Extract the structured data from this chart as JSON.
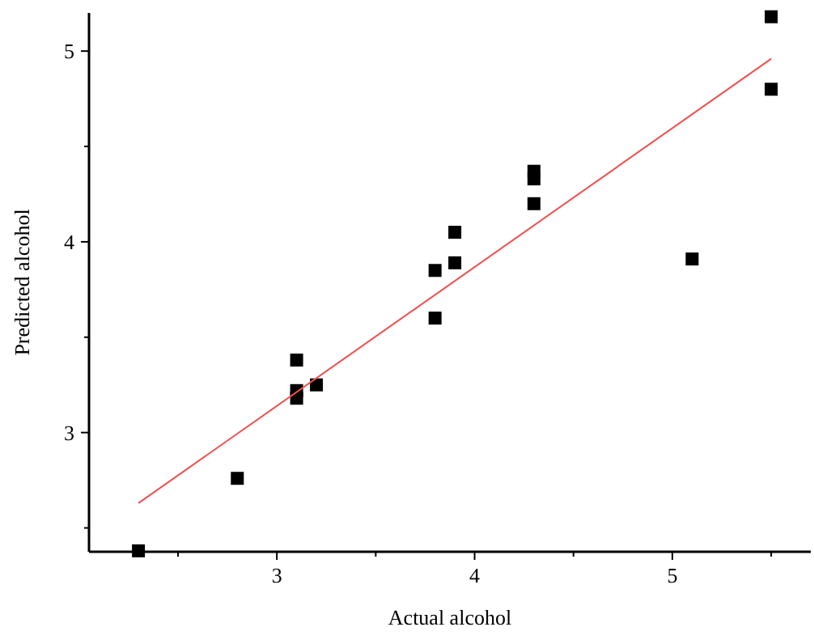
{
  "chart_data": {
    "type": "scatter",
    "xlabel": "Actual alcohol",
    "ylabel": "Predicted alcohol",
    "xlim": [
      2.05,
      5.7
    ],
    "ylim": [
      2.375,
      5.2
    ],
    "xticks": [
      {
        "value": 2.5,
        "label": null
      },
      3,
      {
        "value": 3.5,
        "label": null
      },
      4,
      {
        "value": 4.5,
        "label": null
      },
      5,
      {
        "value": 5.5,
        "label": null
      }
    ],
    "yticks": [
      {
        "value": 2.5,
        "label": null
      },
      3,
      {
        "value": 3.5,
        "label": null
      },
      4,
      {
        "value": 4.5,
        "label": null
      },
      5
    ],
    "grid": false,
    "series": [
      {
        "marker": "square",
        "color": "#000000",
        "x": [
          2.3,
          2.8,
          3.1,
          3.1,
          3.1,
          3.2,
          3.8,
          3.8,
          3.9,
          3.9,
          4.3,
          4.3,
          4.3,
          5.1,
          5.5,
          5.5
        ],
        "values": [
          2.38,
          2.76,
          3.38,
          3.22,
          3.18,
          3.25,
          3.85,
          3.6,
          4.05,
          3.89,
          4.37,
          4.33,
          4.2,
          3.91,
          5.18,
          4.8
        ]
      },
      {
        "type": "line",
        "color": "#f05050",
        "x": [
          2.3,
          5.5
        ],
        "values": [
          2.63,
          4.96
        ]
      }
    ]
  }
}
